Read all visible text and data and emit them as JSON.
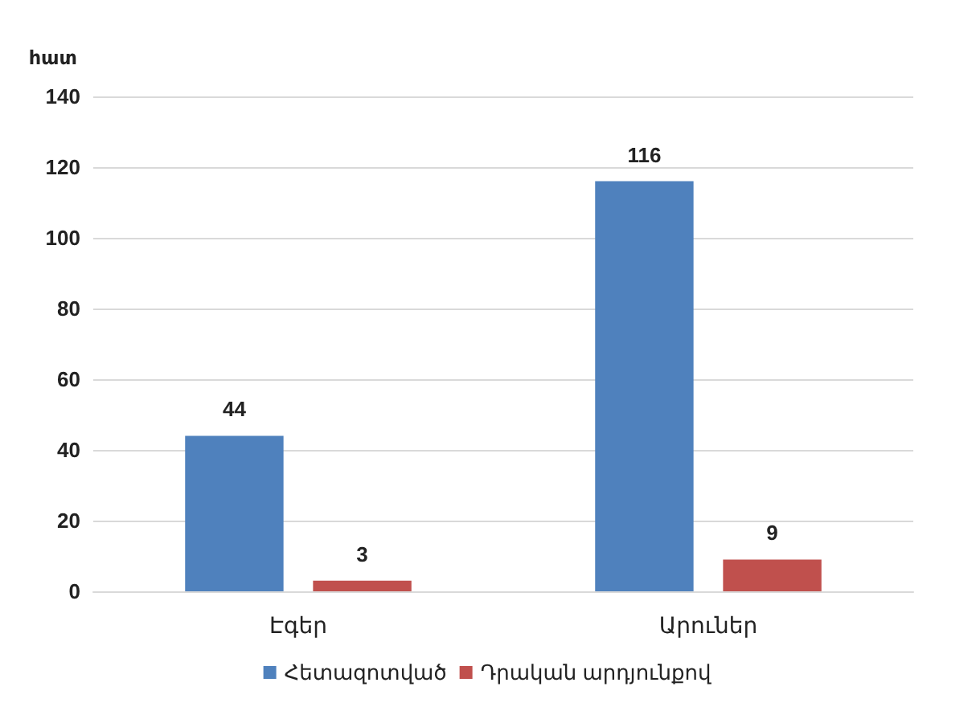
{
  "chart_data": {
    "type": "bar",
    "ylabel": "հատ",
    "categories": [
      "Էգեր",
      "Արուներ"
    ],
    "series": [
      {
        "name": "Հետազոտված",
        "color": "#4f81bd",
        "values": [
          44,
          116
        ]
      },
      {
        "name": "Դրական արդյունքով",
        "color": "#c0504d",
        "values": [
          3,
          9
        ]
      }
    ],
    "ylim": [
      0,
      140
    ],
    "yticks": [
      0,
      20,
      40,
      60,
      80,
      100,
      120,
      140
    ],
    "grid": "y",
    "legend": "bottom",
    "data_labels": true
  }
}
